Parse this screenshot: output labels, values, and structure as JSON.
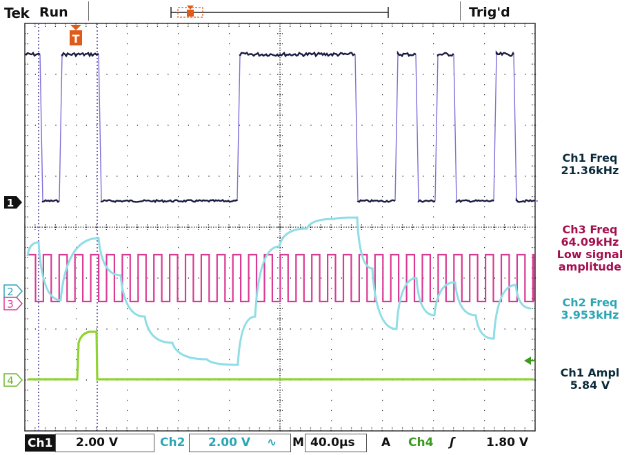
{
  "header": {
    "brand": "Tek",
    "acq_state": "Run",
    "trigger_status": "Trig'd"
  },
  "markers": {
    "trigger_marker": "T",
    "ch1_marker": "1",
    "ch2_marker": "2",
    "ch3_marker": "3",
    "ch4_marker": "4"
  },
  "measurements": [
    {
      "label": "Ch1 Freq",
      "value": "21.36kHz",
      "color": "#0a2a3a"
    },
    {
      "label": "Ch3 Freq",
      "value": "64.09kHz",
      "color": "#a3104e"
    },
    {
      "label": "Low signal",
      "value": "amplitude",
      "color": "#a3104e"
    },
    {
      "label": "Ch2 Freq",
      "value": "3.953kHz",
      "color": "#2aa6b4"
    },
    {
      "label": "Ch1 Ampl",
      "value": "5.84 V",
      "color": "#0a2a3a"
    }
  ],
  "footer": {
    "ch1_label": "Ch1",
    "ch1_scale": "2.00 V",
    "ch2_label": "Ch2",
    "ch2_scale": "2.00 V",
    "ch2_coupling": "∿",
    "timebase_label": "M",
    "timebase_value": "40.0µs",
    "trigger_mode": "A",
    "trigger_source": "Ch4",
    "trigger_slope": "ʃ",
    "trigger_level": "1.80 V"
  },
  "colors": {
    "ch1": "#1a1a40",
    "ch2": "#8fdde6",
    "ch3": "#d93a93",
    "ch4": "#8fd330",
    "ch1_edge": "#7b6fd6",
    "grid": "#333333",
    "trigger_marker": "#e05a1a"
  }
}
